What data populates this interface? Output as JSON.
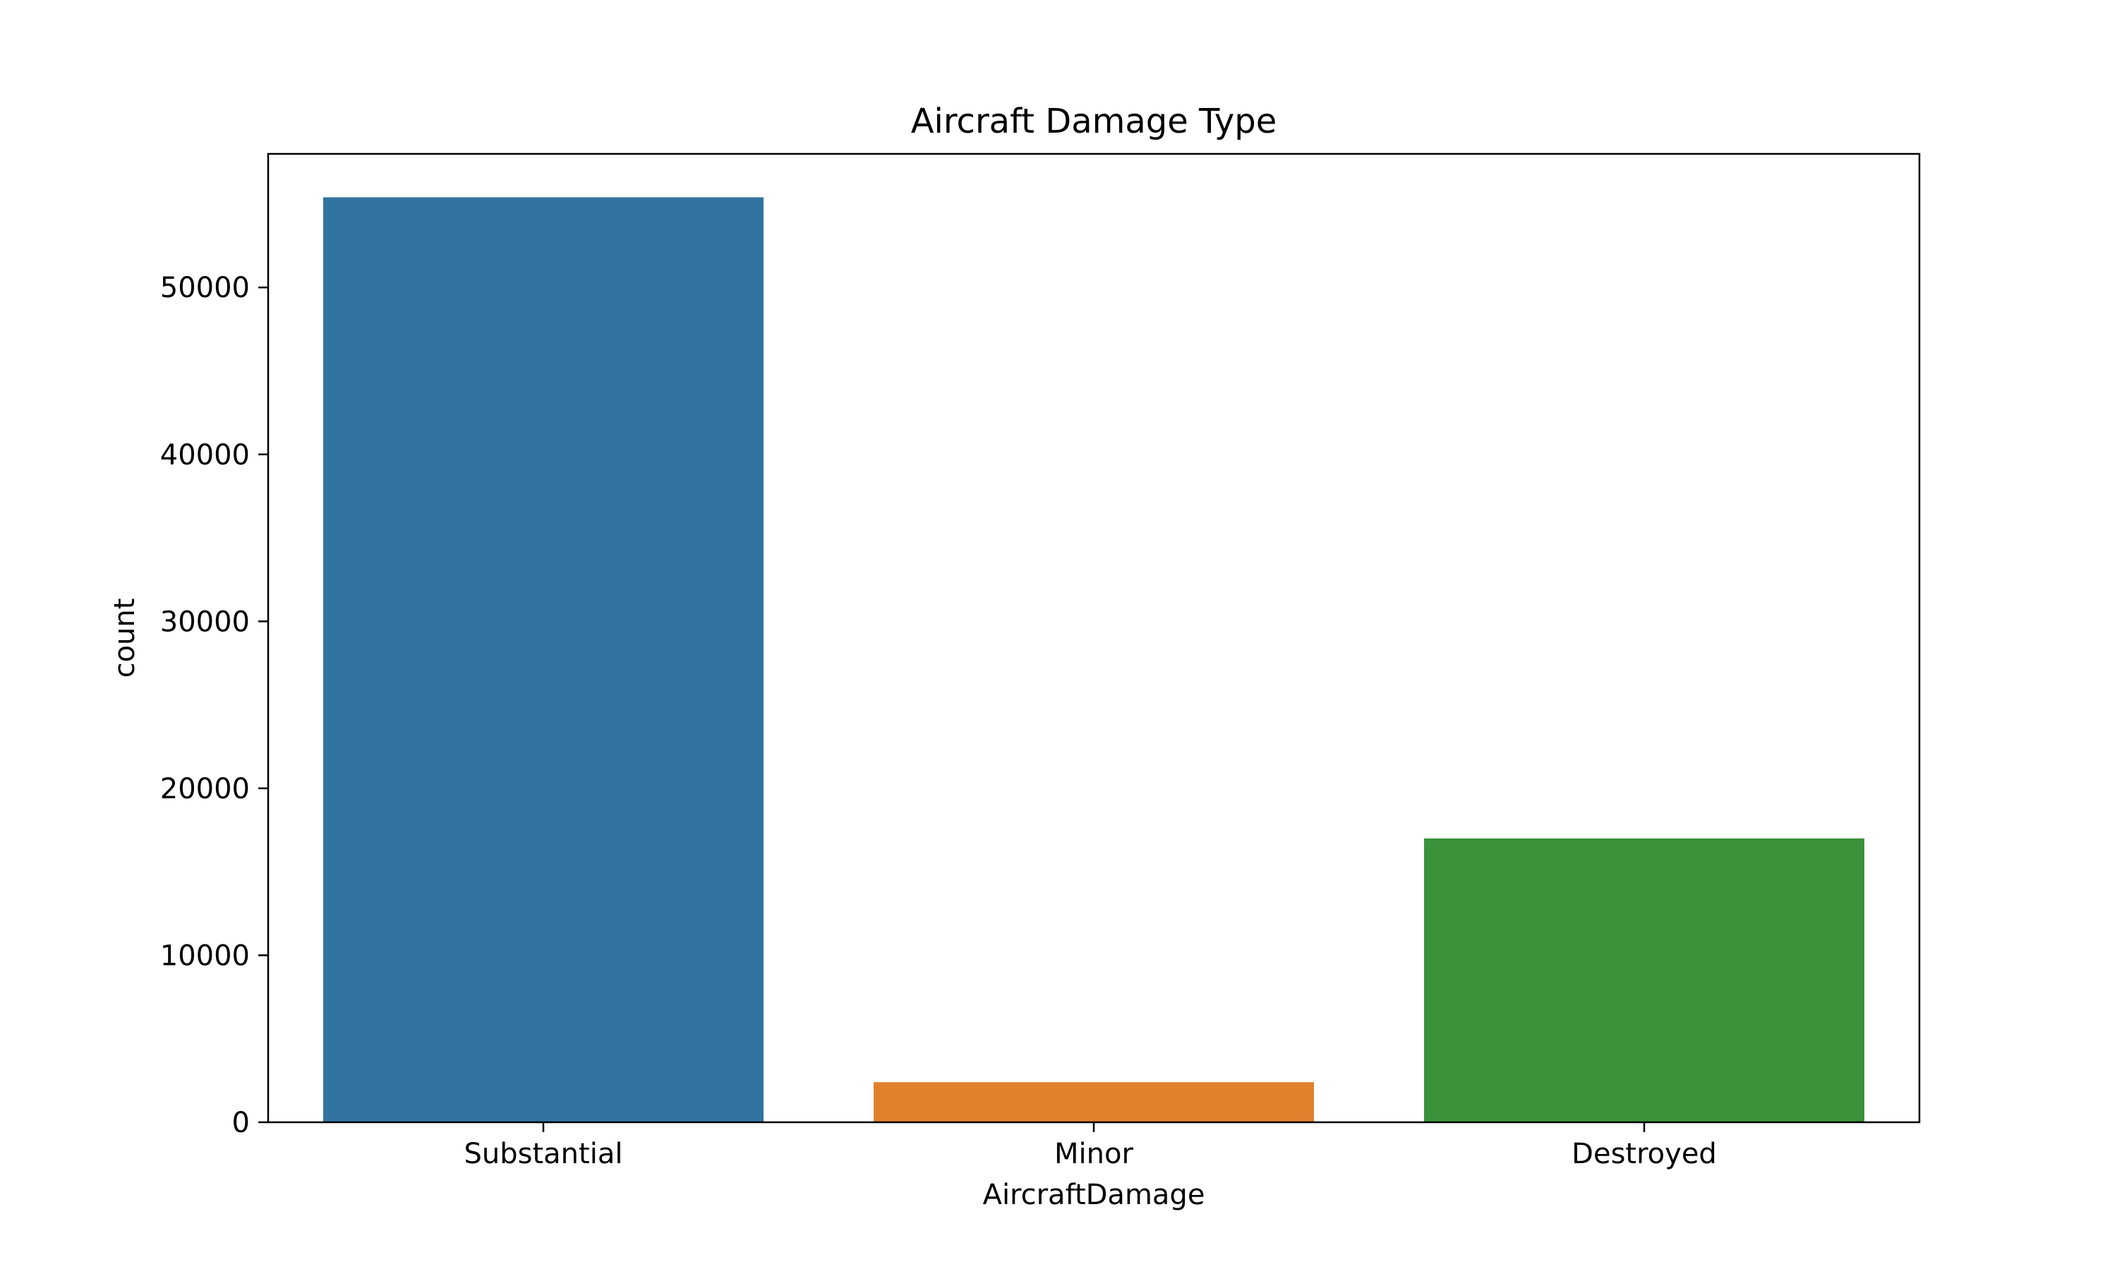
{
  "chart_data": {
    "type": "bar",
    "title": "Aircraft Damage Type",
    "xlabel": "AircraftDamage",
    "ylabel": "count",
    "categories": [
      "Substantial",
      "Minor",
      "Destroyed"
    ],
    "values": [
      55400,
      2400,
      17000
    ],
    "colors": [
      "#3274a1",
      "#e1812c",
      "#3a923a"
    ],
    "ylim": [
      0,
      58000
    ],
    "yticks": [
      0,
      10000,
      20000,
      30000,
      40000,
      50000
    ],
    "ytick_labels": [
      "0",
      "10000",
      "20000",
      "30000",
      "40000",
      "50000"
    ],
    "grid": false,
    "legend": "none"
  }
}
